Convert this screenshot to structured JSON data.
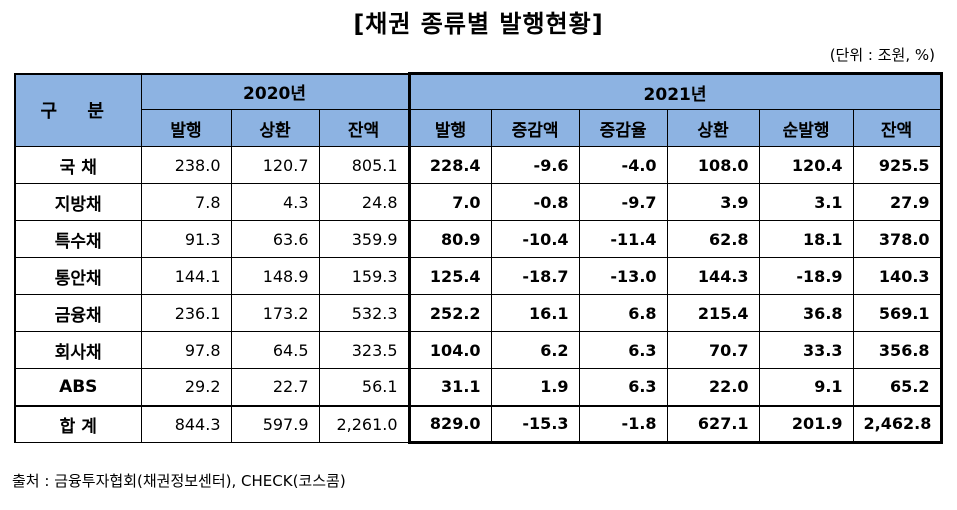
{
  "title": "[채권 종류별 발행현황]",
  "unit": "(단위 : 조원, %)",
  "header": {
    "category": "구 분",
    "year_2020": "2020년",
    "year_2021": "2021년",
    "cols_2020": [
      "발행",
      "상환",
      "잔액"
    ],
    "cols_2021": [
      "발행",
      "증감액",
      "증감율",
      "상환",
      "순발행",
      "잔액"
    ]
  },
  "rows": [
    {
      "label": "국 채",
      "v": [
        "238.0",
        "120.7",
        "805.1",
        "228.4",
        "-9.6",
        "-4.0",
        "108.0",
        "120.4",
        "925.5"
      ]
    },
    {
      "label": "지방채",
      "v": [
        "7.8",
        "4.3",
        "24.8",
        "7.0",
        "-0.8",
        "-9.7",
        "3.9",
        "3.1",
        "27.9"
      ]
    },
    {
      "label": "특수채",
      "v": [
        "91.3",
        "63.6",
        "359.9",
        "80.9",
        "-10.4",
        "-11.4",
        "62.8",
        "18.1",
        "378.0"
      ]
    },
    {
      "label": "통안채",
      "v": [
        "144.1",
        "148.9",
        "159.3",
        "125.4",
        "-18.7",
        "-13.0",
        "144.3",
        "-18.9",
        "140.3"
      ]
    },
    {
      "label": "금융채",
      "v": [
        "236.1",
        "173.2",
        "532.3",
        "252.2",
        "16.1",
        "6.8",
        "215.4",
        "36.8",
        "569.1"
      ]
    },
    {
      "label": "회사채",
      "v": [
        "97.8",
        "64.5",
        "323.5",
        "104.0",
        "6.2",
        "6.3",
        "70.7",
        "33.3",
        "356.8"
      ]
    },
    {
      "label": "ABS",
      "v": [
        "29.2",
        "22.7",
        "56.1",
        "31.1",
        "1.9",
        "6.3",
        "22.0",
        "9.1",
        "65.2"
      ]
    },
    {
      "label": "합 계",
      "v": [
        "844.3",
        "597.9",
        "2,261.0",
        "829.0",
        "-15.3",
        "-1.8",
        "627.1",
        "201.9",
        "2,462.8"
      ]
    }
  ],
  "source": "출처 : 금융투자협회(채권정보센터), CHECK(코스콤)"
}
